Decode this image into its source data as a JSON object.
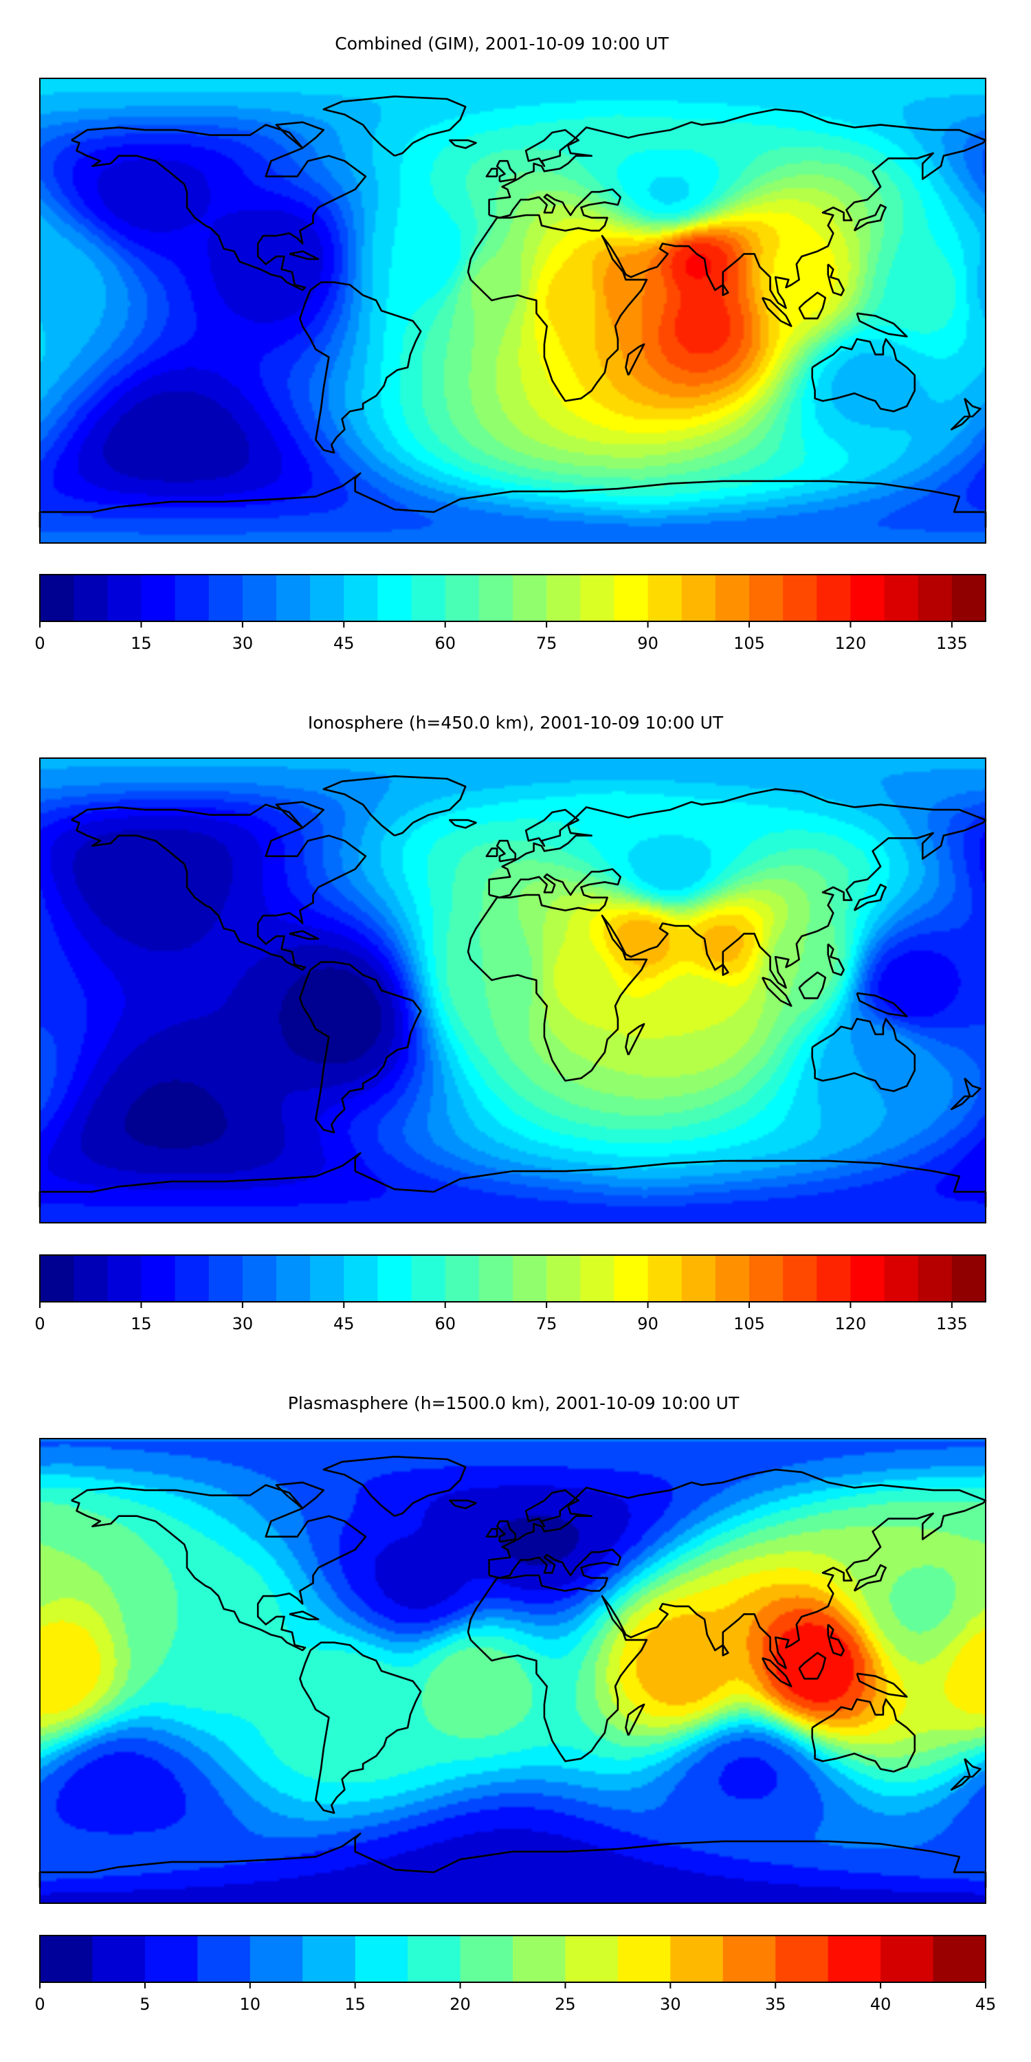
{
  "colors": {
    "jet_scale": [
      "#00007f",
      "#0000ff",
      "#007fff",
      "#00ffff",
      "#7fff7f",
      "#ffff00",
      "#ff7f00",
      "#ff0000",
      "#7f0000"
    ],
    "coast": "#000000",
    "frame": "#000000"
  },
  "chart_data": [
    {
      "type": "heatmap",
      "title": "Combined (GIM), 2001-10-09 10:00 UT",
      "xlabel": "",
      "ylabel": "",
      "colorbar": {
        "range": [
          0,
          140
        ],
        "levels": 28,
        "ticks": [
          0,
          15,
          30,
          45,
          60,
          75,
          90,
          105,
          120,
          135
        ],
        "tick_labels": [
          "0",
          "15",
          "30",
          "45",
          "60",
          "75",
          "90",
          "105",
          "120",
          "135"
        ]
      },
      "grid": false,
      "background": 14,
      "features": [
        {
          "region": "south Asia / Arabia crest",
          "lon": 70,
          "lat": 18,
          "value": 122
        },
        {
          "region": "southern crest over Indian Ocean",
          "lon": 72,
          "lat": -5,
          "value": 118
        },
        {
          "region": "east Africa / Arabian Sea",
          "lon": 45,
          "lat": 8,
          "value": 105
        },
        {
          "region": "Africa",
          "lon": 22,
          "lat": 5,
          "value": 92
        },
        {
          "region": "south-east Asia / maritime continent",
          "lon": 110,
          "lat": 12,
          "value": 88
        },
        {
          "region": "Atlantic / west Africa",
          "lon": -8,
          "lat": 10,
          "value": 72
        },
        {
          "region": "western Pacific",
          "lon": 158,
          "lat": 8,
          "value": 58
        },
        {
          "region": "mid Atlantic",
          "lon": -30,
          "lat": 20,
          "value": 50
        },
        {
          "region": "Europe / Asia mid latitudes",
          "lon": 60,
          "lat": 45,
          "value": 48
        },
        {
          "region": "Australia",
          "lon": 135,
          "lat": -28,
          "value": 42
        },
        {
          "region": "central Pacific edge",
          "lon": -172,
          "lat": 10,
          "value": 42
        },
        {
          "region": "Americas",
          "lon": -90,
          "lat": 20,
          "value": 10
        },
        {
          "region": "south Pacific",
          "lon": -130,
          "lat": -50,
          "value": 6
        },
        {
          "region": "north Pacific",
          "lon": -140,
          "lat": 45,
          "value": 12
        }
      ]
    },
    {
      "type": "heatmap",
      "title": "Ionosphere  (h=450.0 km), 2001-10-09 10:00 UT",
      "xlabel": "",
      "ylabel": "",
      "colorbar": {
        "range": [
          0,
          140
        ],
        "levels": 28,
        "ticks": [
          0,
          15,
          30,
          45,
          60,
          75,
          90,
          105,
          120,
          135
        ],
        "tick_labels": [
          "0",
          "15",
          "30",
          "45",
          "60",
          "75",
          "90",
          "105",
          "120",
          "135"
        ]
      },
      "grid": false,
      "background": 12,
      "features": [
        {
          "region": "Arabia crest",
          "lon": 50,
          "lat": 20,
          "value": 100
        },
        {
          "region": "India / Bay of Bengal",
          "lon": 80,
          "lat": 18,
          "value": 98
        },
        {
          "region": "Africa",
          "lon": 25,
          "lat": 5,
          "value": 82
        },
        {
          "region": "Indian Ocean",
          "lon": 70,
          "lat": -5,
          "value": 80
        },
        {
          "region": "south-east Asia",
          "lon": 110,
          "lat": 10,
          "value": 70
        },
        {
          "region": "Atlantic / west Africa",
          "lon": -5,
          "lat": 5,
          "value": 65
        },
        {
          "region": "Europe / Asia mid latitudes",
          "lon": 60,
          "lat": 45,
          "value": 45
        },
        {
          "region": "western Pacific trough",
          "lon": 150,
          "lat": 0,
          "value": 15
        },
        {
          "region": "Australia",
          "lon": 140,
          "lat": -25,
          "value": 40
        },
        {
          "region": "South America",
          "lon": -65,
          "lat": -10,
          "value": 2
        },
        {
          "region": "north Pacific",
          "lon": -140,
          "lat": 45,
          "value": 6
        },
        {
          "region": "south Pacific",
          "lon": -130,
          "lat": -50,
          "value": 4
        }
      ]
    },
    {
      "type": "heatmap",
      "title": "Plasmasphere (h=1500.0 km), 2001-10-09 10:00 UT",
      "xlabel": "",
      "ylabel": "",
      "colorbar": {
        "range": [
          0,
          45
        ],
        "levels": 18,
        "ticks": [
          0,
          5,
          10,
          15,
          20,
          25,
          30,
          35,
          40,
          45
        ],
        "tick_labels": [
          "0",
          "5",
          "10",
          "15",
          "20",
          "25",
          "30",
          "35",
          "40",
          "45"
        ]
      },
      "grid": false,
      "background": 8,
      "features": [
        {
          "region": "maritime continent",
          "lon": 115,
          "lat": 2,
          "value": 40
        },
        {
          "region": "Arabian Sea / Indian Ocean",
          "lon": 65,
          "lat": 2,
          "value": 32
        },
        {
          "region": "central Pacific edge",
          "lon": -175,
          "lat": 0,
          "value": 30
        },
        {
          "region": "north-western Pacific",
          "lon": 155,
          "lat": 25,
          "value": 22
        },
        {
          "region": "south Atlantic / Africa",
          "lon": -15,
          "lat": -5,
          "value": 22
        },
        {
          "region": "South America",
          "lon": -60,
          "lat": -15,
          "value": 20
        },
        {
          "region": "eastern Pacific",
          "lon": -120,
          "lat": 15,
          "value": 20
        },
        {
          "region": "Europe / Eurasia",
          "lon": 10,
          "lat": 50,
          "value": 2
        },
        {
          "region": "north Atlantic",
          "lon": -35,
          "lat": 35,
          "value": 4
        },
        {
          "region": "south Pacific",
          "lon": -150,
          "lat": -45,
          "value": 6
        },
        {
          "region": "southern Indian Ocean",
          "lon": 90,
          "lat": -40,
          "value": 7
        },
        {
          "region": "Antarctic",
          "lon": 0,
          "lat": -75,
          "value": 4
        }
      ]
    }
  ]
}
